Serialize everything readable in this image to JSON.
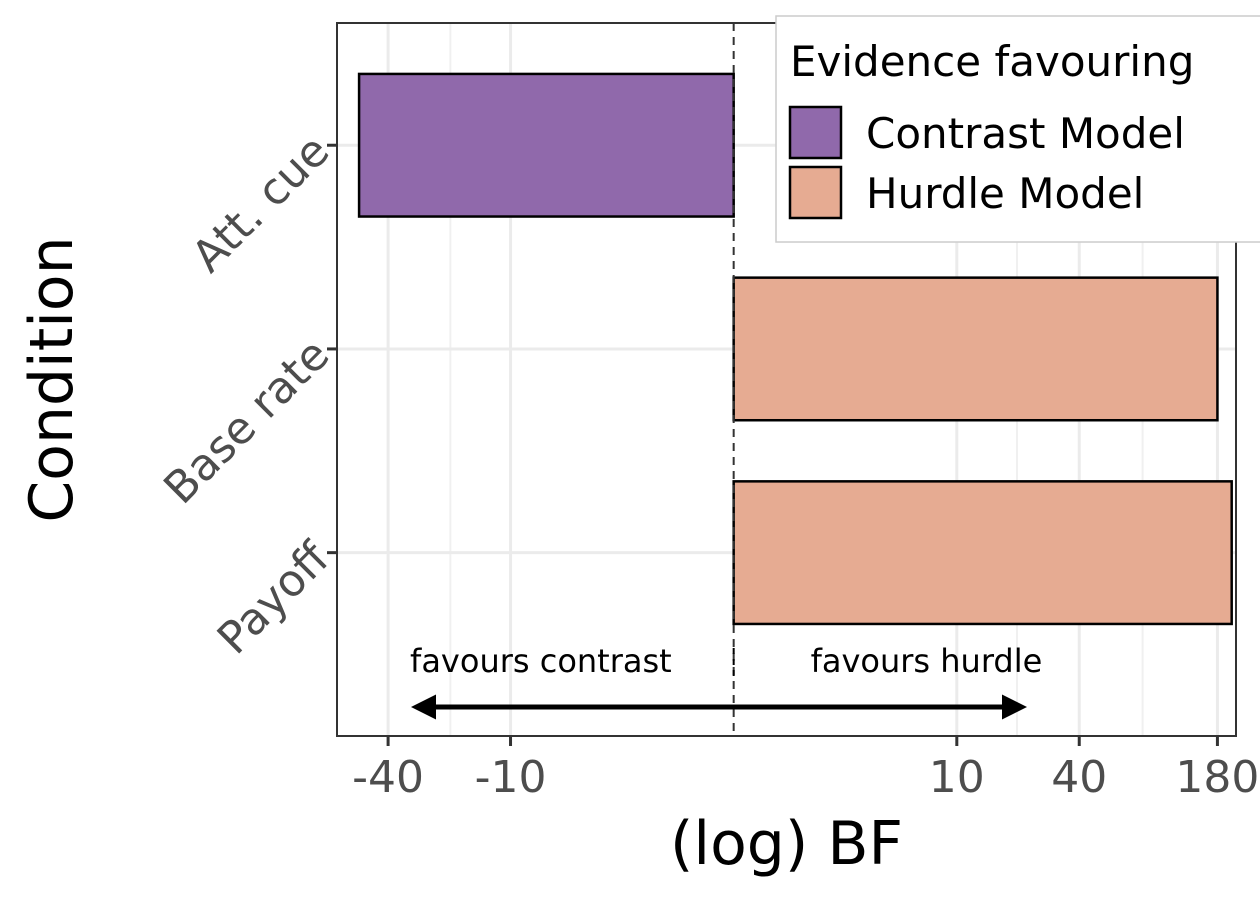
{
  "chart_data": {
    "type": "bar",
    "orientation": "horizontal",
    "xlabel": "(log) BF",
    "ylabel": "Condition",
    "x_scale": "symmetric-log",
    "xlim": [
      -70,
      220
    ],
    "categories": [
      "Att. cue",
      "Base rate",
      "Payoff"
    ],
    "series": [
      {
        "name": "Contrast Model",
        "color": "#9069ab"
      },
      {
        "name": "Hurdle Model",
        "color": "#e6ab92"
      }
    ],
    "bars": [
      {
        "category": "Att. cue",
        "value": -55,
        "series": "Contrast Model"
      },
      {
        "category": "Base rate",
        "value": 180,
        "series": "Hurdle Model"
      },
      {
        "category": "Payoff",
        "value": 210,
        "series": "Hurdle Model"
      }
    ],
    "x_ticks": [
      {
        "value": -40,
        "label": "-40"
      },
      {
        "value": -10,
        "label": "-10"
      },
      {
        "value": 10,
        "label": "10"
      },
      {
        "value": 40,
        "label": "40"
      },
      {
        "value": 180,
        "label": "180"
      }
    ],
    "x_minor_ticks": [
      -20,
      20,
      80
    ],
    "reference_line": 0,
    "legend": {
      "title": "Evidence favouring",
      "placement": "top-right",
      "entries": [
        "Contrast Model",
        "Hurdle Model"
      ]
    },
    "annotations": {
      "left": "favours contrast",
      "right": "favours hurdle",
      "arrow": "double-headed"
    },
    "grid": true
  }
}
